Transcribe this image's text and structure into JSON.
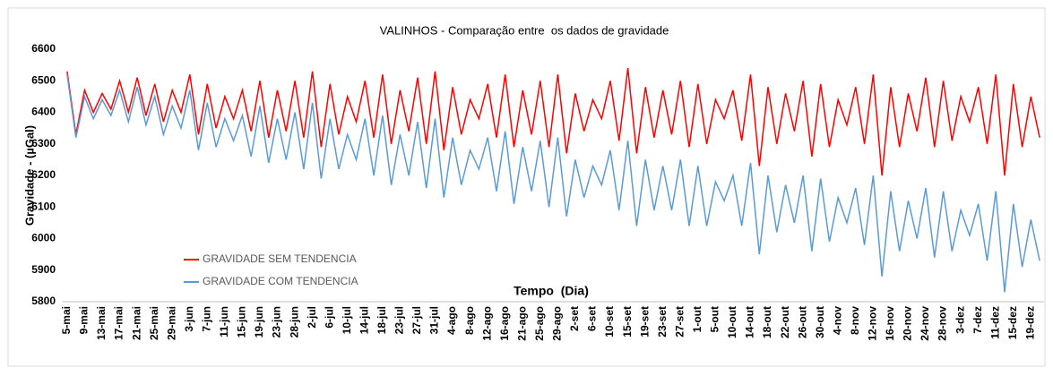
{
  "chart_data": {
    "type": "line",
    "title": "VALINHOS - Comparação entre  os dados de gravidade",
    "y_label": "Gravidade - (µGal)",
    "x_label": "Tempo  (Dia)",
    "categories": [
      "5-mai",
      null,
      "9-mai",
      null,
      "13-mai",
      null,
      "17-mai",
      null,
      "21-mai",
      null,
      "25-mai",
      null,
      "29-mai",
      null,
      "3-jun",
      null,
      "7-jun",
      null,
      "11-jun",
      null,
      "15-jun",
      null,
      "19-jun",
      null,
      "23-jun",
      null,
      "28-jun",
      null,
      "2-jul",
      null,
      "6-jul",
      null,
      "10-jul",
      null,
      "14-jul",
      null,
      "18-jul",
      null,
      "23-jul",
      null,
      "27-jul",
      null,
      "31-jul",
      null,
      "4-ago",
      null,
      "8-ago",
      null,
      "12-ago",
      null,
      "16-ago",
      null,
      "21-ago",
      null,
      "25-ago",
      null,
      "29-ago",
      null,
      "2-set",
      null,
      "6-set",
      null,
      "10-set",
      null,
      "15-set",
      null,
      "19-set",
      null,
      "23-set",
      null,
      "27-set",
      null,
      "1-out",
      null,
      "5-out",
      null,
      "10-out",
      null,
      "14-out",
      null,
      "18-out",
      null,
      "22-out",
      null,
      "26-out",
      null,
      "30-out",
      null,
      "4-nov",
      null,
      "8-nov",
      null,
      "12-nov",
      null,
      "16-nov",
      null,
      "20-nov",
      null,
      "24-nov",
      null,
      "28-nov",
      null,
      "3-dez",
      null,
      "7-dez",
      null,
      "11-dez",
      null,
      "15-dez",
      null,
      "19-dez",
      null
    ],
    "series": [
      {
        "name": "GRAVIDADE SEM TENDENCIA",
        "color": "#ff0000",
        "values": [
          6530,
          6330,
          6470,
          6400,
          6460,
          6410,
          6500,
          6400,
          6510,
          6390,
          6490,
          6370,
          6470,
          6400,
          6520,
          6330,
          6490,
          6350,
          6450,
          6380,
          6470,
          6340,
          6500,
          6320,
          6470,
          6340,
          6500,
          6320,
          6530,
          6290,
          6490,
          6330,
          6450,
          6370,
          6500,
          6320,
          6520,
          6300,
          6470,
          6340,
          6510,
          6300,
          6530,
          6280,
          6480,
          6330,
          6440,
          6380,
          6490,
          6320,
          6520,
          6290,
          6470,
          6330,
          6500,
          6290,
          6520,
          6270,
          6460,
          6340,
          6440,
          6380,
          6500,
          6310,
          6540,
          6270,
          6480,
          6320,
          6470,
          6330,
          6500,
          6290,
          6490,
          6300,
          6440,
          6380,
          6470,
          6310,
          6520,
          6230,
          6480,
          6300,
          6460,
          6340,
          6500,
          6260,
          6490,
          6290,
          6440,
          6360,
          6480,
          6300,
          6520,
          6200,
          6480,
          6290,
          6460,
          6340,
          6510,
          6290,
          6500,
          6310,
          6450,
          6370,
          6480,
          6300,
          6520,
          6200,
          6490,
          6290,
          6450,
          6320
        ]
      },
      {
        "name": "GRAVIDADE COM TENDENCIA",
        "color": "#5b9bd5",
        "values": [
          6520,
          6320,
          6450,
          6380,
          6440,
          6390,
          6470,
          6370,
          6480,
          6360,
          6450,
          6330,
          6420,
          6350,
          6470,
          6280,
          6430,
          6290,
          6380,
          6310,
          6390,
          6260,
          6420,
          6240,
          6380,
          6250,
          6400,
          6220,
          6430,
          6190,
          6380,
          6220,
          6330,
          6250,
          6380,
          6200,
          6390,
          6170,
          6330,
          6200,
          6370,
          6160,
          6380,
          6130,
          6320,
          6170,
          6280,
          6220,
          6320,
          6150,
          6340,
          6110,
          6290,
          6150,
          6310,
          6100,
          6320,
          6070,
          6250,
          6130,
          6230,
          6170,
          6280,
          6090,
          6310,
          6040,
          6250,
          6090,
          6230,
          6090,
          6250,
          6040,
          6230,
          6040,
          6180,
          6120,
          6200,
          6040,
          6240,
          5950,
          6200,
          6020,
          6170,
          6050,
          6200,
          5960,
          6190,
          5990,
          6130,
          6050,
          6160,
          5980,
          6200,
          5880,
          6150,
          5960,
          6120,
          6000,
          6160,
          5940,
          6150,
          5960,
          6090,
          6010,
          6110,
          5930,
          6150,
          5830,
          6110,
          5910,
          6060,
          5930
        ]
      }
    ],
    "ylim": [
      5800,
      6600
    ],
    "yticks": [
      5800,
      5900,
      6000,
      6100,
      6200,
      6300,
      6400,
      6500,
      6600
    ],
    "grid": false,
    "legend": "left"
  }
}
